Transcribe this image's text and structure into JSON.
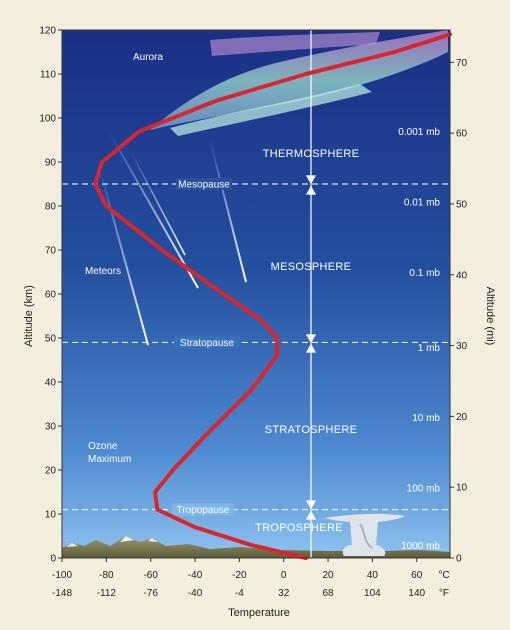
{
  "colors": {
    "sky_top": "#1a2f86",
    "sky_mid": "#2a5fb5",
    "sky_bottom": "#8ec3ef",
    "profile": "#d8262e",
    "page_bg": "#f4eedf"
  },
  "labels": {
    "aurora": "Aurora",
    "meteors": "Meteors",
    "ozone_line1": "Ozone",
    "ozone_line2": "Maximum",
    "thermosphere": "THERMOSPHERE",
    "mesosphere": "MESOSPHERE",
    "stratosphere": "STRATOSPHERE",
    "troposphere": "TROPOSPHERE",
    "mesopause": "Mesopause",
    "stratopause": "Stratopause",
    "tropopause": "Tropopause"
  },
  "chart_data": {
    "type": "line",
    "xlabel": "Temperature",
    "ylabel_left": "Altitude (km)",
    "ylabel_right": "Altitude (mi)",
    "x_ticks_c": [
      "-100",
      "-80",
      "-60",
      "-40",
      "-20",
      "0",
      "20",
      "40",
      "60",
      "°C"
    ],
    "x_ticks_f": [
      "-148",
      "-112",
      "-76",
      "-40",
      "-4",
      "32",
      "68",
      "104",
      "140",
      "°F"
    ],
    "xlim_c": [
      -100,
      75
    ],
    "ylim_km": [
      0,
      120
    ],
    "y_ticks_km": [
      "0",
      "10",
      "20",
      "30",
      "40",
      "50",
      "60",
      "70",
      "80",
      "90",
      "100",
      "110",
      "120"
    ],
    "y_ticks_mi": [
      "0",
      "10",
      "20",
      "30",
      "40",
      "50",
      "60",
      "70"
    ],
    "pressure_labels": [
      {
        "text": "0.001 mb",
        "altitude_km": 97
      },
      {
        "text": "0.01 mb",
        "altitude_km": 81
      },
      {
        "text": "0.1 mb",
        "altitude_km": 65
      },
      {
        "text": "1 mb",
        "altitude_km": 48
      },
      {
        "text": "10 mb",
        "altitude_km": 32
      },
      {
        "text": "100 mb",
        "altitude_km": 16
      },
      {
        "text": "1000 mb",
        "altitude_km": 3
      }
    ],
    "boundaries_km": {
      "tropopause": 11,
      "stratopause": 49,
      "mesopause": 85
    },
    "series": [
      {
        "x": [
          10,
          -15,
          -40,
          -57,
          -58,
          -50,
          -35,
          -15,
          -3,
          -3,
          -10,
          -30,
          -55,
          -80,
          -85,
          -82,
          -65,
          -30,
          10,
          50,
          75
        ],
        "y": [
          0,
          3,
          7,
          11,
          15,
          20,
          28,
          38,
          46,
          50,
          54,
          61,
          70,
          80,
          85,
          90,
          97,
          104,
          110,
          115,
          119
        ]
      }
    ]
  }
}
